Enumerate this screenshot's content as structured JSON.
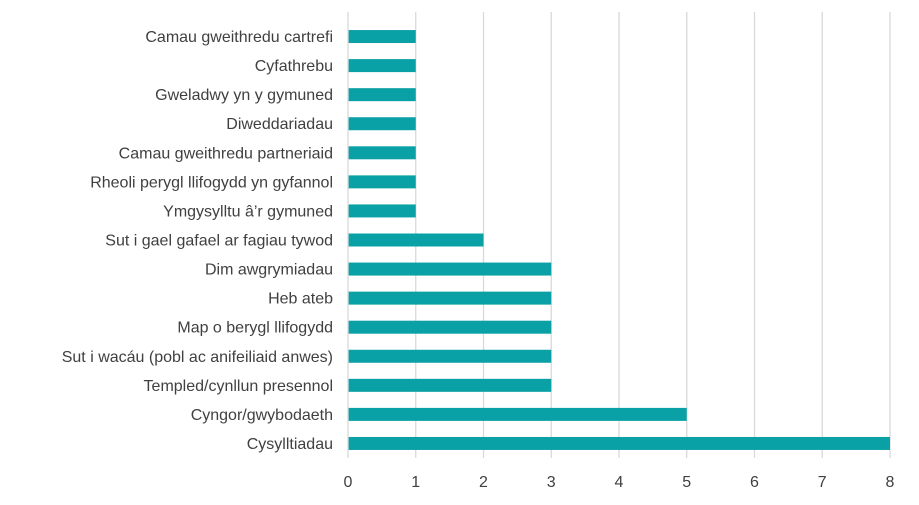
{
  "chart_data": {
    "type": "bar",
    "orientation": "horizontal",
    "categories": [
      "Camau gweithredu cartrefi",
      "Cyfathrebu",
      "Gweladwy yn y gymuned",
      "Diweddariadau",
      "Camau gweithredu partneriaid",
      "Rheoli perygl llifogydd yn gyfannol",
      "Ymgysylltu â’r gymuned",
      "Sut i gael gafael ar fagiau tywod",
      "Dim awgrymiadau",
      "Heb ateb",
      "Map o berygl llifogydd",
      "Sut i wacáu (pobl ac anifeiliaid anwes)",
      "Templed/cynllun presennol",
      "Cyngor/gwybodaeth",
      "Cysylltiadau"
    ],
    "values": [
      1,
      1,
      1,
      1,
      1,
      1,
      1,
      2,
      3,
      3,
      3,
      3,
      3,
      5,
      8
    ],
    "xticks": [
      "0",
      "1",
      "2",
      "3",
      "4",
      "5",
      "6",
      "7",
      "8"
    ],
    "xlim": [
      0,
      8
    ],
    "grid": true,
    "bar_color": "#0aa1a6",
    "grid_color": "#d9d9d9"
  }
}
